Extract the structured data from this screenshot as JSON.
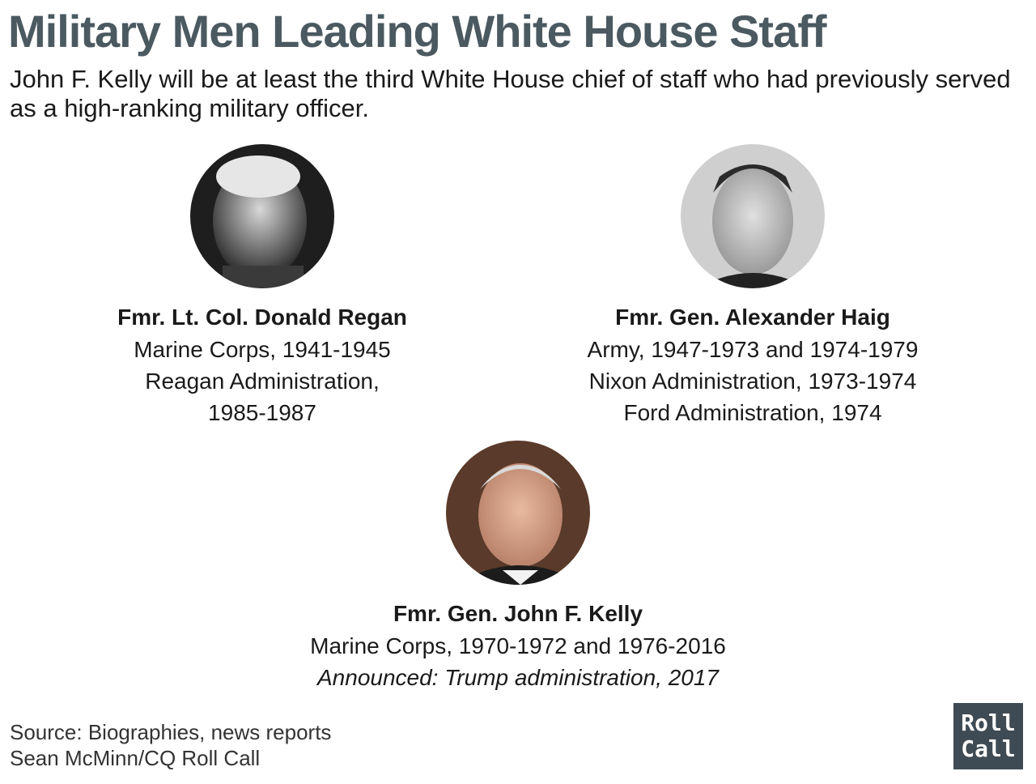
{
  "title": "Military Men Leading White House Staff",
  "subtitle": "John F. Kelly will be at least the third White House chief of staff who had previously served as a high-ranking military officer.",
  "people": [
    {
      "name": "Fmr. Lt. Col. Donald Regan",
      "line1": "Marine Corps, 1941-1945",
      "line2": "Reagan Administration,",
      "line3": "1985-1987"
    },
    {
      "name": "Fmr. Gen. Alexander Haig",
      "line1": "Army, 1947-1973 and 1974-1979",
      "line2": "Nixon Administration, 1973-1974",
      "line3": "Ford Administration, 1974"
    },
    {
      "name": "Fmr. Gen. John F. Kelly",
      "line1": "Marine Corps, 1970-1972 and 1976-2016",
      "line2": "Announced: Trump administration, 2017"
    }
  ],
  "footer": {
    "source": "Source: Biographies, news reports",
    "credit": "Sean McMinn/CQ Roll Call"
  },
  "logo": {
    "line1": "Roll",
    "line2": "Call"
  },
  "colors": {
    "title": "#4b5961",
    "logo_bg": "#3f4b54"
  }
}
